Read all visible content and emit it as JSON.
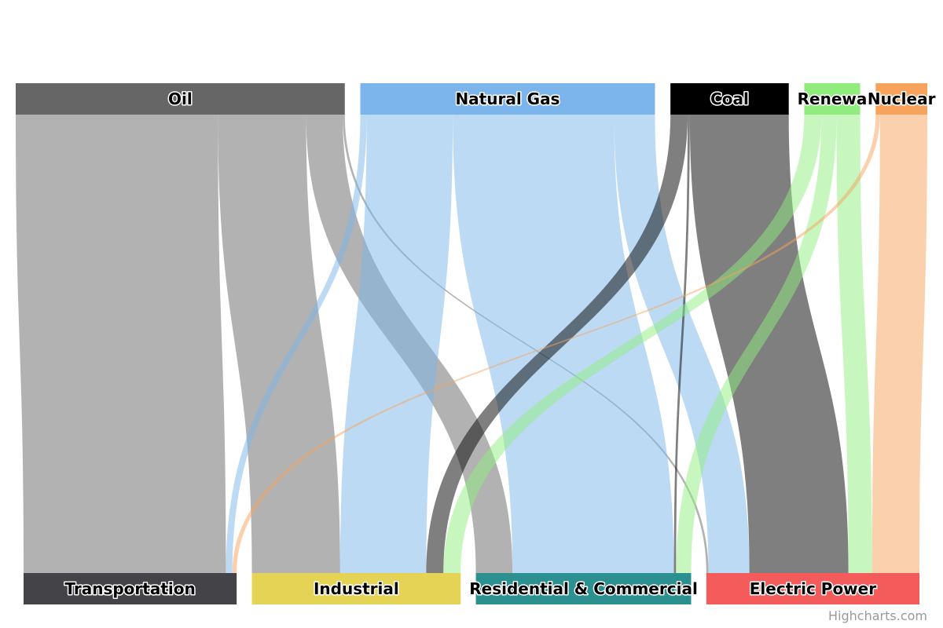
{
  "chart_data": {
    "type": "sankey",
    "title": "",
    "orientation": "vertical",
    "sources": [
      {
        "id": "Oil",
        "color": "#666666"
      },
      {
        "id": "Natural Gas",
        "color": "#7cb5ec"
      },
      {
        "id": "Coal",
        "color": "#000000"
      },
      {
        "id": "Renewable",
        "label": "Renewa",
        "color": "#90ed7d"
      },
      {
        "id": "Nuclear",
        "color": "#f7a35c"
      }
    ],
    "targets": [
      {
        "id": "Transportation",
        "color": "#434348"
      },
      {
        "id": "Industrial",
        "color": "#e4d354"
      },
      {
        "id": "Residential & Commercial",
        "color": "#2b908f"
      },
      {
        "id": "Electric Power",
        "color": "#f45b5b"
      }
    ],
    "links": [
      {
        "from": "Oil",
        "to": "Transportation",
        "value": 94
      },
      {
        "from": "Oil",
        "to": "Industrial",
        "value": 41
      },
      {
        "from": "Oil",
        "to": "Residential & Commercial",
        "value": 17
      },
      {
        "from": "Oil",
        "to": "Electric Power",
        "value": 1
      },
      {
        "from": "Natural Gas",
        "to": "Transportation",
        "value": 3
      },
      {
        "from": "Natural Gas",
        "to": "Industrial",
        "value": 40
      },
      {
        "from": "Natural Gas",
        "to": "Residential & Commercial",
        "value": 75
      },
      {
        "from": "Natural Gas",
        "to": "Electric Power",
        "value": 19
      },
      {
        "from": "Coal",
        "to": "Industrial",
        "value": 8
      },
      {
        "from": "Coal",
        "to": "Residential & Commercial",
        "value": 1
      },
      {
        "from": "Coal",
        "to": "Electric Power",
        "value": 46
      },
      {
        "from": "Renewable",
        "to": "Industrial",
        "value": 8
      },
      {
        "from": "Renewable",
        "to": "Residential & Commercial",
        "value": 7
      },
      {
        "from": "Renewable",
        "to": "Electric Power",
        "value": 11
      },
      {
        "from": "Nuclear",
        "to": "Transportation",
        "value": 2
      },
      {
        "from": "Nuclear",
        "to": "Electric Power",
        "value": 22
      }
    ]
  },
  "credits": "Highcharts.com"
}
